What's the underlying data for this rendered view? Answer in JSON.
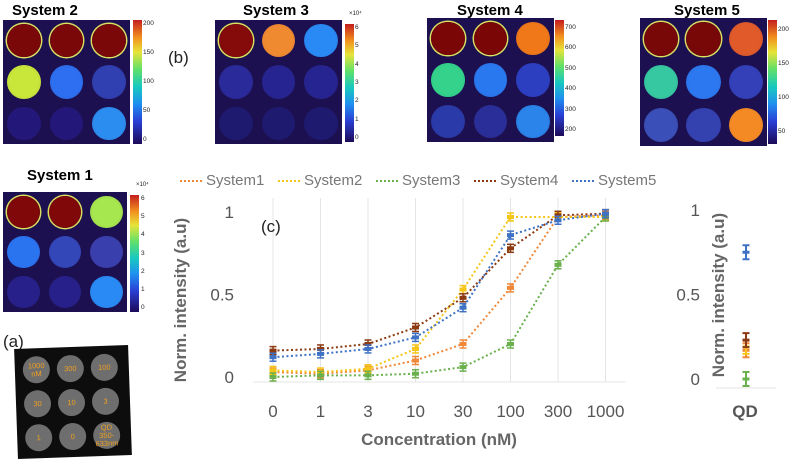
{
  "panel_b": {
    "letter": "(b)",
    "system2": {
      "title": "System 2",
      "ticks": [
        "200",
        "150",
        "100",
        "50",
        "0"
      ],
      "exp": ""
    },
    "system3": {
      "title": "System 3",
      "ticks": [
        "6",
        "5",
        "4",
        "3",
        "2",
        "1",
        "0"
      ],
      "exp": "×10⁴"
    },
    "system4": {
      "title": "System 4",
      "ticks": [
        "700",
        "600",
        "500",
        "400",
        "300",
        "200"
      ],
      "exp": ""
    },
    "system5": {
      "title": "System 5",
      "ticks": [
        "200",
        "150",
        "100",
        "50"
      ],
      "exp": ""
    },
    "system1": {
      "title": "System 1",
      "ticks": [
        "6",
        "5",
        "4",
        "3",
        "2",
        "1",
        "0"
      ],
      "exp": "×10⁴"
    }
  },
  "panel_a": {
    "letter": "(a)",
    "wells": [
      "1000 nM",
      "300",
      "100",
      "30",
      "10",
      "3",
      "1",
      "0",
      "QD 350-633nm"
    ]
  },
  "panel_c": {
    "letter": "(c)"
  },
  "well_colors": {
    "system2": [
      "#7a0808",
      "#7a0808",
      "#7a0808",
      "#c9e63a",
      "#2d6ff0",
      "#3040b0",
      "#23187a",
      "#23187a",
      "#2c8df0"
    ],
    "system3": [
      "#850a0a",
      "#f08a30",
      "#2a8af5",
      "#2a2a9a",
      "#262490",
      "#262490",
      "#1e1a70",
      "#1e1a70",
      "#1e1a70"
    ],
    "system4": [
      "#7a0606",
      "#7a0606",
      "#f07818",
      "#34d28a",
      "#2a78f0",
      "#2c3fc0",
      "#2a3aa8",
      "#2a2e98",
      "#2a84ea"
    ],
    "system5": [
      "#780808",
      "#780808",
      "#e05a2a",
      "#36c8a0",
      "#2c78f0",
      "#3340b8",
      "#3a50b8",
      "#3442b0",
      "#f48a24"
    ],
    "system1": [
      "#800808",
      "#800808",
      "#a6e64e",
      "#2a74f0",
      "#3347b8",
      "#3a3fae",
      "#27208a",
      "#27208a",
      "#2a8af5"
    ]
  },
  "chart_data": [
    {
      "type": "line",
      "xlabel": "Concentration (nM)",
      "ylabel": "Norm. intensity (a.u)",
      "categories": [
        "0",
        "1",
        "3",
        "10",
        "30",
        "100",
        "300",
        "1000"
      ],
      "yticks": [
        "0",
        "0.5",
        "1"
      ],
      "ylim": [
        0,
        1
      ],
      "grid": "vertical",
      "legend_position": "top",
      "series": [
        {
          "name": "System1",
          "color": "#f0883a",
          "values": [
            0.03,
            0.02,
            0.04,
            0.1,
            0.2,
            0.54,
            0.97,
            0.98
          ]
        },
        {
          "name": "System2",
          "color": "#f5c518",
          "values": [
            0.04,
            0.03,
            0.05,
            0.17,
            0.53,
            0.97,
            0.97,
            0.97
          ]
        },
        {
          "name": "System3",
          "color": "#6ab04c",
          "values": [
            0.0,
            0.01,
            0.01,
            0.02,
            0.06,
            0.2,
            0.68,
            0.97
          ]
        },
        {
          "name": "System4",
          "color": "#8b3a12",
          "values": [
            0.16,
            0.17,
            0.2,
            0.3,
            0.48,
            0.78,
            0.98,
            0.99
          ]
        },
        {
          "name": "System5",
          "color": "#3f72c4",
          "values": [
            0.12,
            0.14,
            0.17,
            0.24,
            0.42,
            0.86,
            0.95,
            0.99
          ]
        }
      ]
    },
    {
      "type": "scatter",
      "ylabel": "Norm. intensity (a.u)",
      "categories": [
        "QD"
      ],
      "yticks": [
        "0",
        "0.5",
        "1"
      ],
      "ylim": [
        0,
        1
      ],
      "series": [
        {
          "name": "System1",
          "color": "#f0883a",
          "values": [
            0.17
          ]
        },
        {
          "name": "System2",
          "color": "#f5c518",
          "values": [
            0.19
          ]
        },
        {
          "name": "System3",
          "color": "#6ab04c",
          "values": [
            0.0
          ]
        },
        {
          "name": "System4",
          "color": "#8b3a12",
          "values": [
            0.23
          ]
        },
        {
          "name": "System5",
          "color": "#3f72c4",
          "values": [
            0.75
          ]
        }
      ]
    }
  ]
}
